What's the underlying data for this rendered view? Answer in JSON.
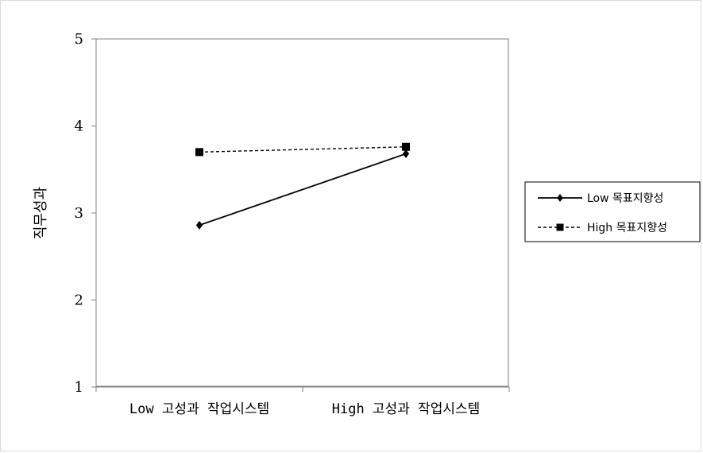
{
  "chart_data": {
    "type": "line",
    "title": "",
    "xlabel": "",
    "ylabel": "직무성과",
    "categories": [
      "Low 고성과 작업시스템",
      "High 고성과 작업시스템"
    ],
    "ylim": [
      1,
      5
    ],
    "yticks": [
      "1",
      "2",
      "3",
      "4",
      "5"
    ],
    "grid": false,
    "legend_position": "right",
    "series": [
      {
        "name": "Low 목표지향성",
        "values": [
          2.86,
          3.68
        ],
        "marker": "diamond",
        "line_style": "solid",
        "color": "#000000"
      },
      {
        "name": "High 목표지향성",
        "values": [
          3.7,
          3.76
        ],
        "marker": "square",
        "line_style": "dashed",
        "color": "#000000"
      }
    ]
  }
}
